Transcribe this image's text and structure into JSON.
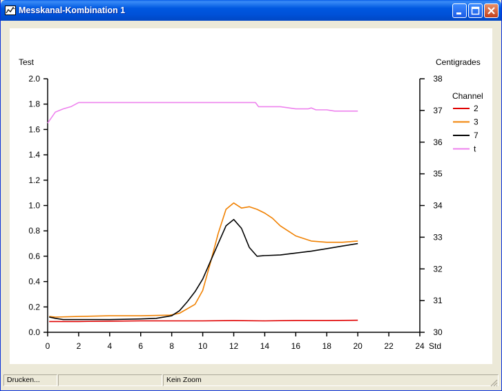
{
  "window": {
    "title": "Messkanal-Kombination 1"
  },
  "status": {
    "cell1": "Drucken...",
    "cell2": "",
    "cell3": "Kein Zoom"
  },
  "chart_data": {
    "type": "line",
    "title": "",
    "xlabel": "Std",
    "ylabel_left": "Test",
    "ylabel_right": "Centigrades",
    "xlim": [
      0,
      24
    ],
    "ylim_left": [
      0,
      2.0
    ],
    "ylim_right": [
      30,
      38
    ],
    "x_ticks": [
      "0",
      "2",
      "4",
      "6",
      "8",
      "10",
      "12",
      "14",
      "16",
      "18",
      "20",
      "22",
      "24"
    ],
    "y_ticks_left": [
      "0.0",
      "0.2",
      "0.4",
      "0.6",
      "0.8",
      "1.0",
      "1.2",
      "1.4",
      "1.6",
      "1.8",
      "2.0"
    ],
    "y_ticks_right": [
      "30",
      "31",
      "32",
      "33",
      "34",
      "35",
      "36",
      "37",
      "38"
    ],
    "grid": false,
    "legend_title": "Channel",
    "legend_position": "right",
    "series": [
      {
        "name": "2",
        "axis": "left",
        "color": "#e00000",
        "x": [
          0.1,
          2,
          4,
          6,
          8,
          10,
          12,
          14,
          16,
          18,
          20
        ],
        "y": [
          0.085,
          0.085,
          0.088,
          0.09,
          0.09,
          0.09,
          0.092,
          0.09,
          0.093,
          0.093,
          0.095
        ]
      },
      {
        "name": "3",
        "axis": "left",
        "color": "#f08000",
        "x": [
          0.1,
          0.5,
          2,
          4,
          6,
          7.9,
          8.5,
          9.5,
          10,
          10.5,
          11,
          11.5,
          12,
          12.5,
          13,
          13.5,
          14,
          14.5,
          15,
          15.5,
          16,
          17,
          18,
          19,
          20
        ],
        "y": [
          0.125,
          0.12,
          0.125,
          0.13,
          0.13,
          0.135,
          0.15,
          0.22,
          0.33,
          0.55,
          0.78,
          0.97,
          1.02,
          0.98,
          0.99,
          0.97,
          0.94,
          0.9,
          0.84,
          0.8,
          0.76,
          0.72,
          0.71,
          0.71,
          0.72
        ]
      },
      {
        "name": "7",
        "axis": "left",
        "color": "#000000",
        "x": [
          0.1,
          0.5,
          1,
          2,
          4,
          6,
          7,
          8,
          8.5,
          9,
          9.5,
          10,
          10.5,
          11,
          11.5,
          12,
          12.5,
          13,
          13.5,
          14,
          15,
          16,
          17,
          18,
          19,
          20
        ],
        "y": [
          0.12,
          0.11,
          0.1,
          0.1,
          0.1,
          0.105,
          0.11,
          0.13,
          0.17,
          0.24,
          0.32,
          0.42,
          0.56,
          0.7,
          0.84,
          0.89,
          0.82,
          0.67,
          0.6,
          0.605,
          0.61,
          0.625,
          0.64,
          0.66,
          0.68,
          0.7
        ]
      },
      {
        "name": "t",
        "axis": "right",
        "color": "#ee82ee",
        "x": [
          0,
          0.5,
          1,
          1.5,
          2,
          4,
          8,
          12,
          13.4,
          13.6,
          15,
          16,
          16.8,
          17,
          17.3,
          18,
          18.5,
          20
        ],
        "y": [
          36.6,
          36.95,
          37.05,
          37.12,
          37.25,
          37.25,
          37.25,
          37.25,
          37.25,
          37.12,
          37.12,
          37.05,
          37.05,
          37.08,
          37.02,
          37.02,
          36.98,
          36.98
        ]
      }
    ]
  }
}
